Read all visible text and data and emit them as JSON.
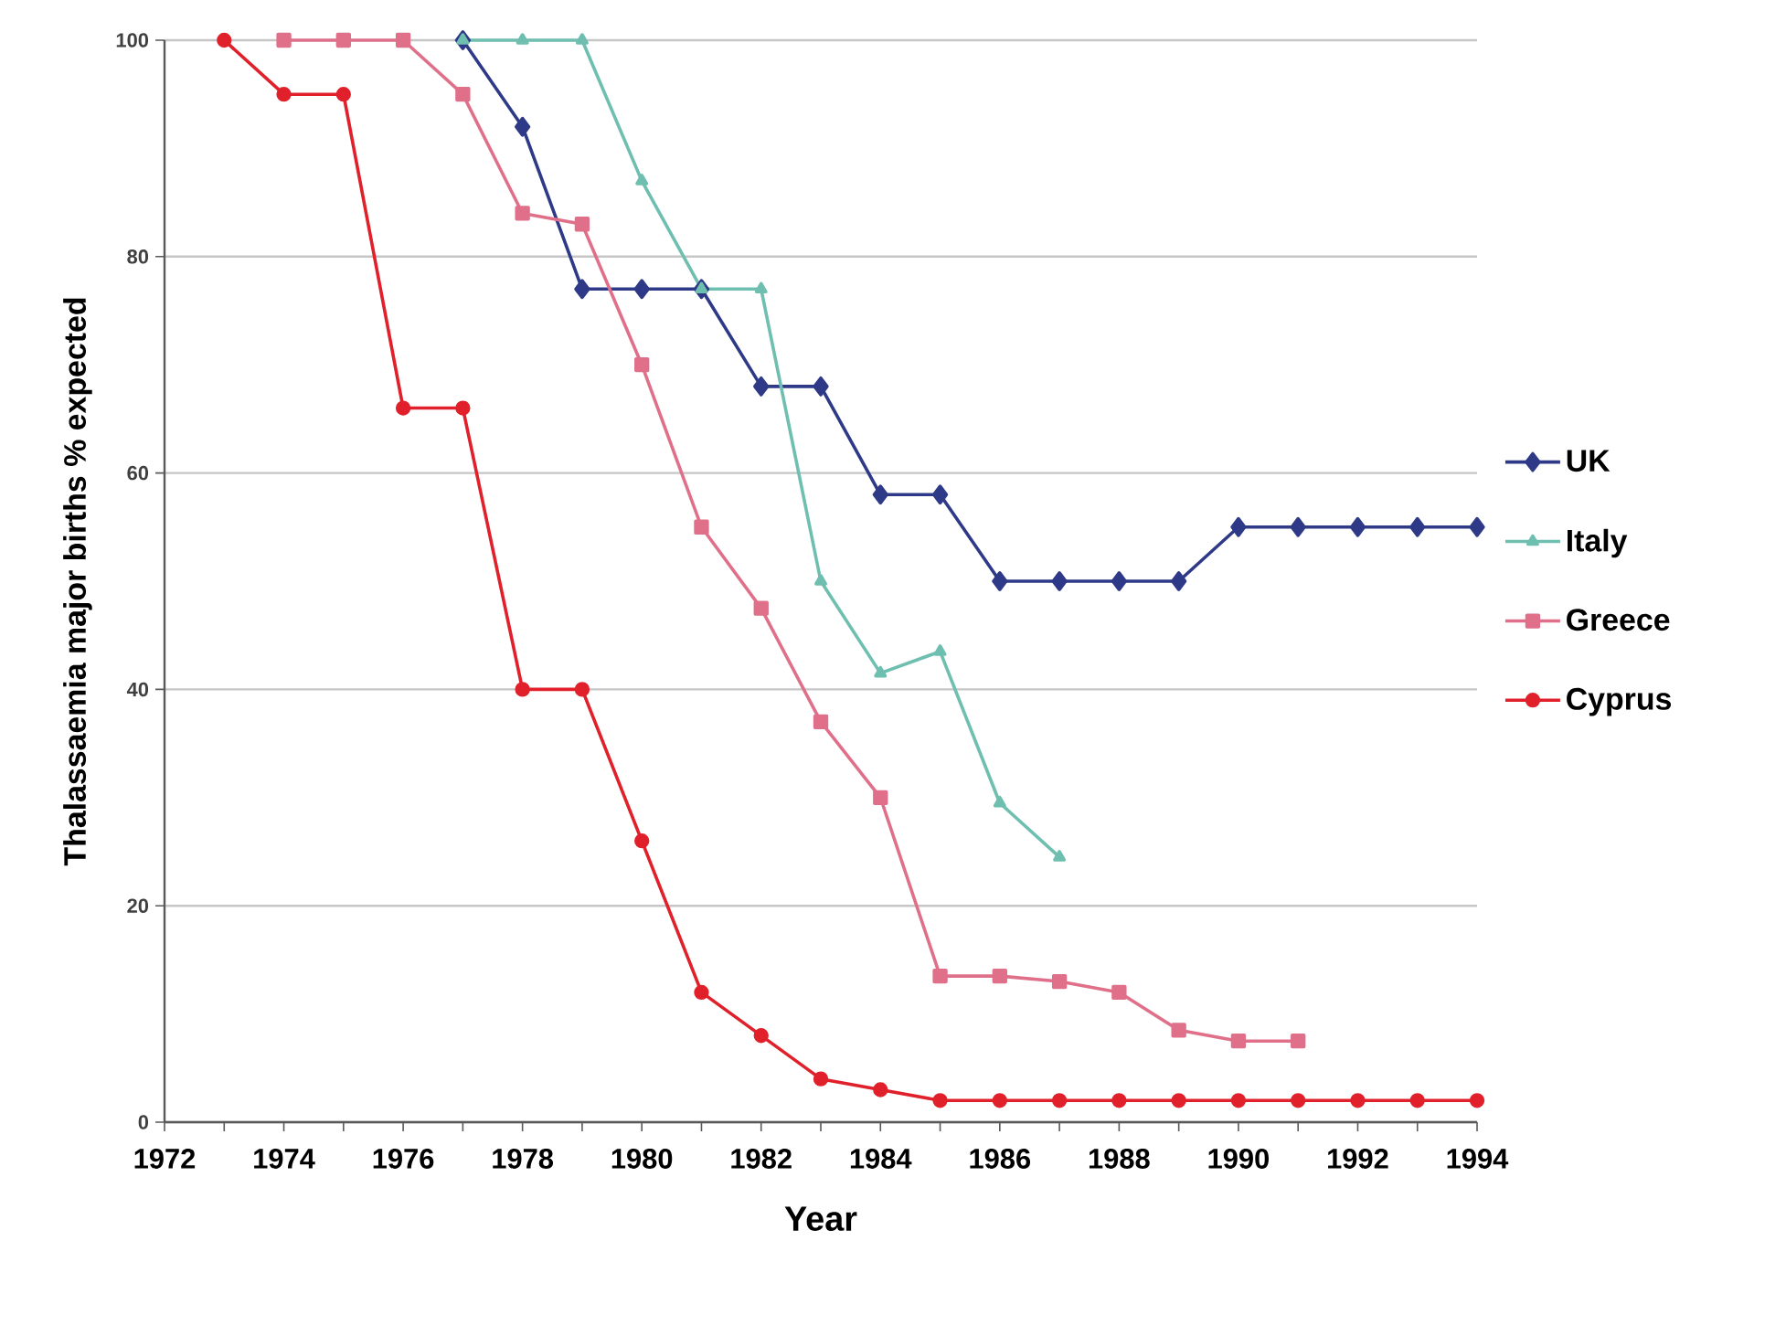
{
  "chart_data": {
    "type": "line",
    "xlabel": "Year",
    "ylabel": "Thalassaemia major births % expected",
    "xlim": [
      1972,
      1994
    ],
    "xticks": [
      1972,
      1974,
      1976,
      1978,
      1980,
      1982,
      1984,
      1986,
      1988,
      1990,
      1992,
      1994
    ],
    "ylim": [
      0,
      100
    ],
    "yticks": [
      0,
      20,
      40,
      60,
      80,
      100
    ],
    "grid": "y",
    "legend": "right",
    "line_style": "solid",
    "series": [
      {
        "name": "UK",
        "color": "#2e3a87",
        "marker": "diamond",
        "x": [
          1977,
          1978,
          1979,
          1980,
          1981,
          1982,
          1983,
          1984,
          1985,
          1986,
          1987,
          1988,
          1989,
          1990,
          1991,
          1992,
          1993,
          1994
        ],
        "values": [
          100,
          92,
          77,
          77,
          77,
          68,
          68,
          58,
          58,
          50,
          50,
          50,
          50,
          55,
          55,
          55,
          55,
          55
        ]
      },
      {
        "name": "Italy",
        "color": "#6fbfb0",
        "marker": "triangle",
        "x": [
          1977,
          1978,
          1979,
          1980,
          1981,
          1982,
          1983,
          1984,
          1985,
          1986,
          1987
        ],
        "values": [
          100,
          100,
          100,
          87,
          77,
          77,
          50,
          41.5,
          43.5,
          29.5,
          24.5
        ]
      },
      {
        "name": "Greece",
        "color": "#e0708a",
        "marker": "square",
        "x": [
          1974,
          1975,
          1976,
          1977,
          1978,
          1979,
          1980,
          1981,
          1982,
          1983,
          1984,
          1985,
          1986,
          1987,
          1988,
          1989,
          1990,
          1991
        ],
        "values": [
          100,
          100,
          100,
          95,
          84,
          83,
          70,
          55,
          47.5,
          37,
          30,
          13.5,
          13.5,
          13,
          12,
          8.5,
          7.5,
          7.5
        ]
      },
      {
        "name": "Cyprus",
        "color": "#e0202a",
        "marker": "circle",
        "x": [
          1973,
          1974,
          1975,
          1976,
          1977,
          1978,
          1979,
          1980,
          1981,
          1982,
          1983,
          1984,
          1985,
          1986,
          1987,
          1988,
          1989,
          1990,
          1991,
          1992,
          1993,
          1994
        ],
        "values": [
          100,
          95,
          95,
          66,
          66,
          40,
          40,
          26,
          12,
          8,
          4,
          3,
          2,
          2,
          2,
          2,
          2,
          2,
          2,
          2,
          2,
          2
        ]
      }
    ]
  }
}
